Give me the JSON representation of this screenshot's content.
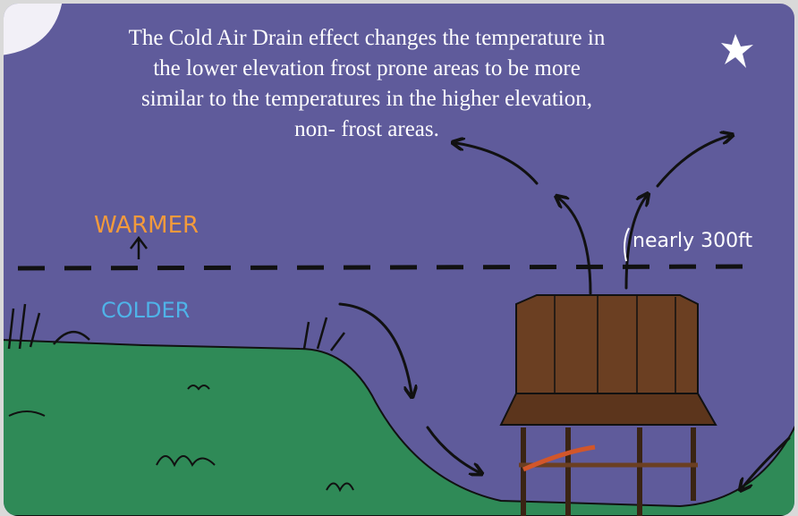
{
  "caption": {
    "lines": [
      "The Cold Air Drain effect changes the temperature in",
      "the lower elevation frost prone areas to be more",
      "similar to the temperatures in the higher elevation,",
      "non- frost areas."
    ]
  },
  "labels": {
    "warmer": "WARMER",
    "colder": "COLDER",
    "height": "nearly 300ft"
  }
}
